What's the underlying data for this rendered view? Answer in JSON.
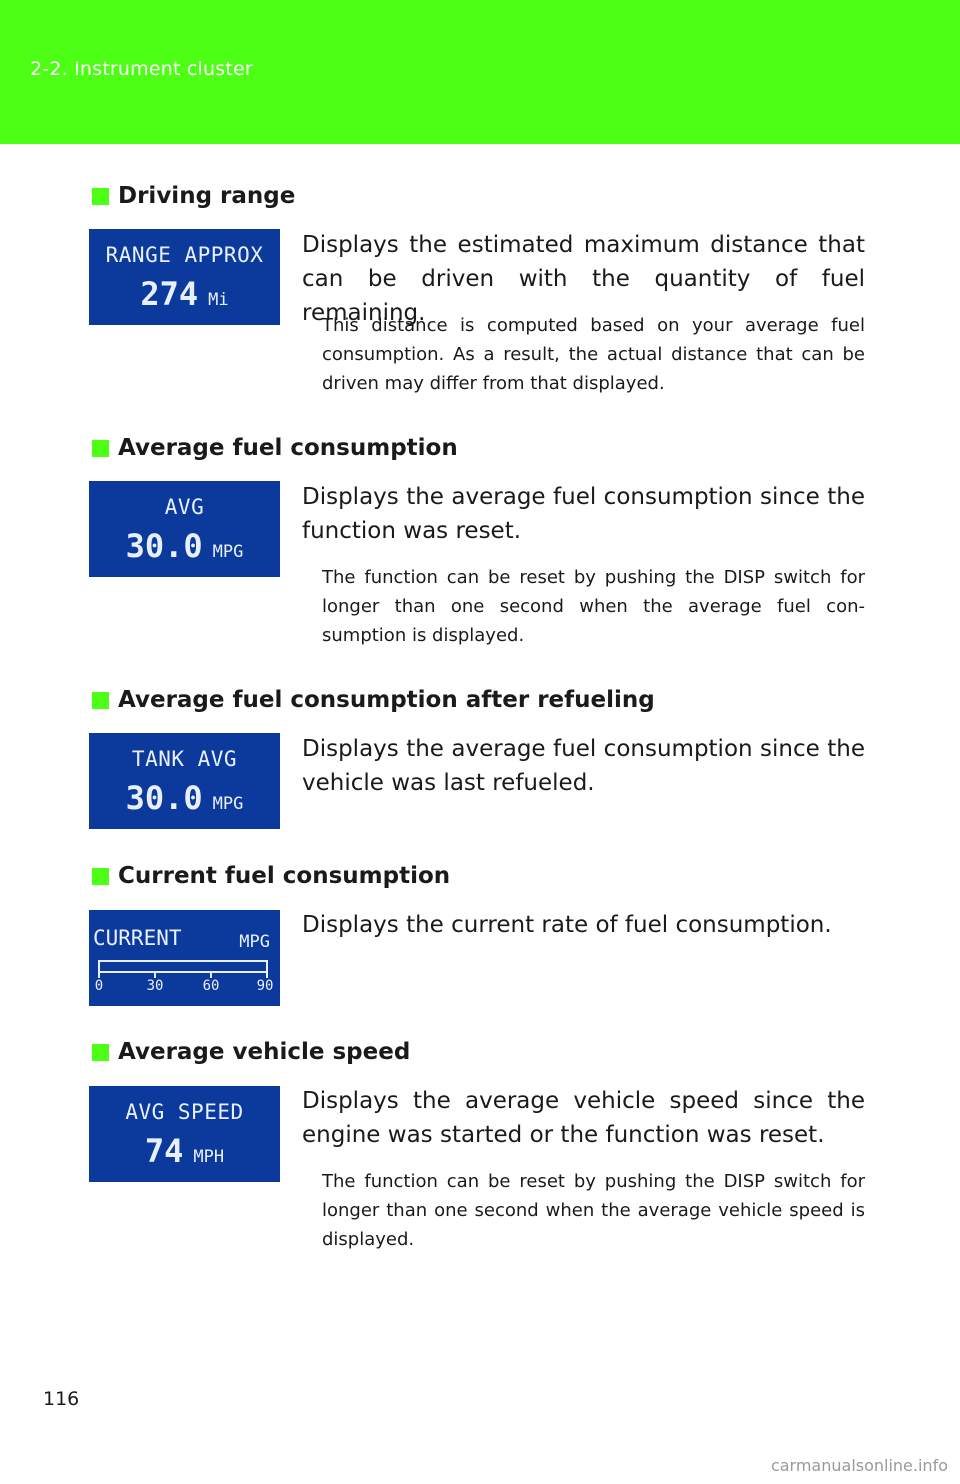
{
  "header": {
    "section_title": "2-2. Instrument cluster",
    "color": "#4cff14"
  },
  "sections": [
    {
      "heading": "Driving range",
      "display": {
        "line1": "RANGE APPROX",
        "value": "274",
        "unit": "Mi"
      },
      "description": "Displays the estimated maximum distance that can be driven with the quantity of fuel remaining.",
      "note": "This distance is computed based on your average fuel consumption. As a result, the actual distance that can be driven may differ from that displayed."
    },
    {
      "heading": "Average fuel consumption",
      "display": {
        "line1": "AVG",
        "value": "30.0",
        "unit": "MPG"
      },
      "description": "Displays the average fuel consumption since the function was reset.",
      "note": "The function can be reset by pushing the DISP switch for longer than one second when the average fuel con-sumption is displayed."
    },
    {
      "heading": "Average fuel consumption after refueling",
      "display": {
        "line1": "TANK AVG",
        "value": "30.0",
        "unit": "MPG"
      },
      "description": "Displays the average fuel consumption since the vehicle was last refueled."
    },
    {
      "heading": "Current fuel consumption",
      "display": {
        "label": "CURRENT",
        "unit": "MPG",
        "scale": [
          "0",
          "30",
          "60",
          "90"
        ],
        "bar_fraction": 0
      },
      "description": "Displays the current rate of fuel consumption."
    },
    {
      "heading": "Average vehicle speed",
      "display": {
        "line1": "AVG SPEED",
        "value": "74",
        "unit": "MPH"
      },
      "description": "Displays the average vehicle speed since the engine was started or the function was reset.",
      "note": "The function can be reset by pushing the DISP switch for longer than one second when the average vehicle speed is displayed."
    }
  ],
  "footer": {
    "page_number": "116",
    "watermark": "carmanualsonline.info"
  },
  "colors": {
    "lcd_background": "#0c3a9c",
    "lcd_text": "#e8f0ff",
    "accent": "#4cff14"
  }
}
